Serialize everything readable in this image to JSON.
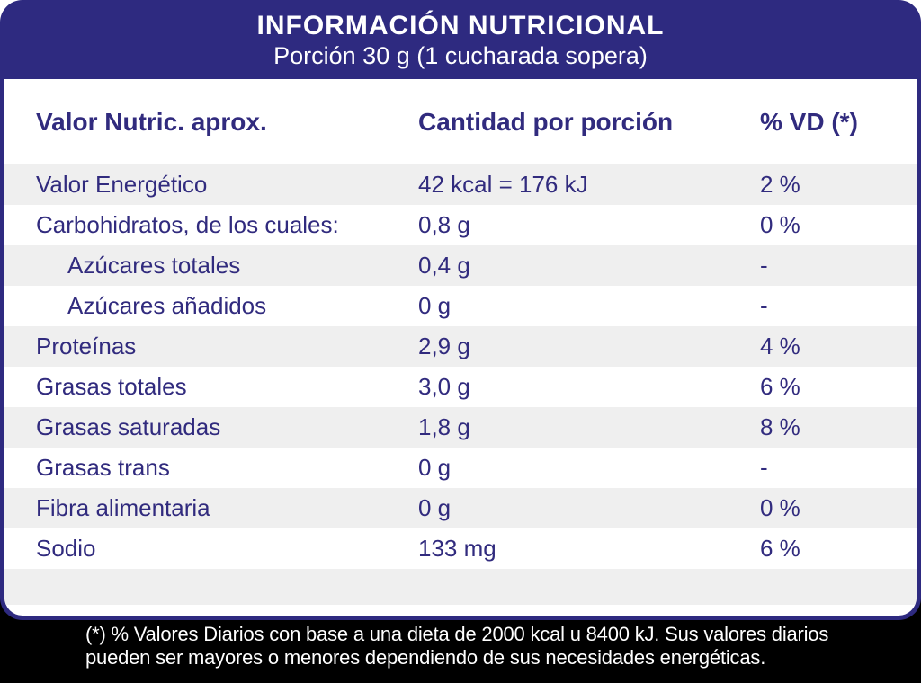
{
  "header": {
    "title": "INFORMACIÓN NUTRICIONAL",
    "subtitle": "Porción 30 g (1 cucharada sopera)"
  },
  "table": {
    "columns": [
      "Valor Nutric. aprox.",
      "Cantidad por porción",
      "% VD (*)"
    ],
    "rows": [
      {
        "name": "Valor Energético",
        "amount": "42 kcal = 176 kJ",
        "vd": "2 %",
        "indent": false
      },
      {
        "name": "Carbohidratos, de los cuales:",
        "amount": "0,8 g",
        "vd": "0 %",
        "indent": false
      },
      {
        "name": "Azúcares totales",
        "amount": "0,4 g",
        "vd": "-",
        "indent": true
      },
      {
        "name": "Azúcares añadidos",
        "amount": "0 g",
        "vd": "-",
        "indent": true
      },
      {
        "name": "Proteínas",
        "amount": "2,9 g",
        "vd": "4 %",
        "indent": false
      },
      {
        "name": "Grasas totales",
        "amount": "3,0 g",
        "vd": "6 %",
        "indent": false
      },
      {
        "name": "Grasas saturadas",
        "amount": "1,8 g",
        "vd": "8 %",
        "indent": false
      },
      {
        "name": "Grasas trans",
        "amount": "0 g",
        "vd": "-",
        "indent": false
      },
      {
        "name": "Fibra alimentaria",
        "amount": "0 g",
        "vd": "0 %",
        "indent": false
      },
      {
        "name": "Sodio",
        "amount": "133 mg",
        "vd": "6 %",
        "indent": false
      }
    ]
  },
  "footnote": {
    "lines": [
      "(*) % Valores Diarios con base a una dieta de 2000 kcal u 8400 kJ. Sus valores diarios",
      "pueden ser mayores o menores dependiendo de sus necesidades energéticas."
    ]
  },
  "colors": {
    "navy": "#2e2a80",
    "text": "#312b7e",
    "stripe": "#efefef",
    "footer_bg": "#000000"
  }
}
